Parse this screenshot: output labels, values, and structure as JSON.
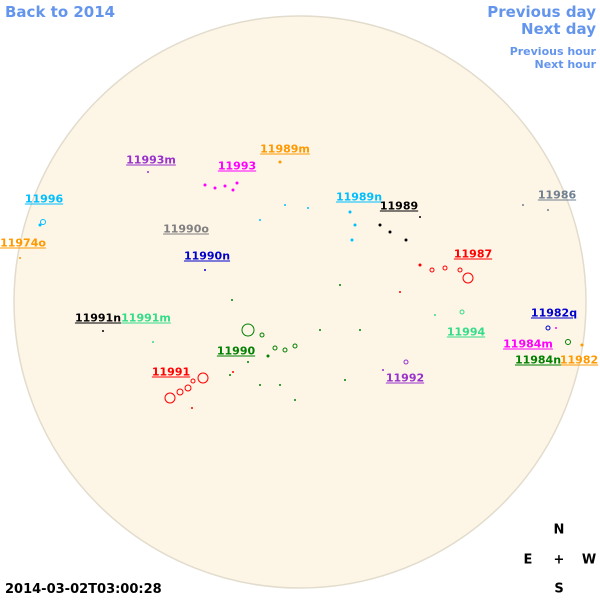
{
  "nav": {
    "back_year": "Back to 2014",
    "previous_day": "Previous day",
    "next_day": "Next day",
    "previous_hour": "Previous hour",
    "next_hour": "Next hour"
  },
  "regions": [
    {
      "label": "11989m",
      "color": "#ff9900"
    },
    {
      "label": "11993m",
      "color": "#9932cc"
    },
    {
      "label": "11993",
      "color": "#ff00ff"
    },
    {
      "label": "11996",
      "color": "#00bfff"
    },
    {
      "label": "11989n",
      "color": "#00bfff"
    },
    {
      "label": "11989",
      "color": "#000000"
    },
    {
      "label": "11986",
      "color": "#708090"
    },
    {
      "label": "11990o",
      "color": "#808080"
    },
    {
      "label": "11974o",
      "color": "#ff9900"
    },
    {
      "label": "11990n",
      "color": "#0000cd"
    },
    {
      "label": "11987",
      "color": "#ff0000"
    },
    {
      "label": "11991n",
      "color": "#000000"
    },
    {
      "label": "11991m",
      "color": "#33dd88"
    },
    {
      "label": "11994",
      "color": "#33dd88"
    },
    {
      "label": "11982q",
      "color": "#0000cd"
    },
    {
      "label": "11990",
      "color": "#008000"
    },
    {
      "label": "11984m",
      "color": "#ff00ff"
    },
    {
      "label": "11982",
      "color": "#ff9900"
    },
    {
      "label": "11984n",
      "color": "#008000"
    },
    {
      "label": "11991",
      "color": "#ff0000"
    },
    {
      "label": "11992",
      "color": "#9932cc"
    }
  ],
  "timestamp": "2014-03-02T03:00:28",
  "compass": {
    "north": "N",
    "east": "E",
    "center": "+",
    "west": "W",
    "south": "S"
  }
}
